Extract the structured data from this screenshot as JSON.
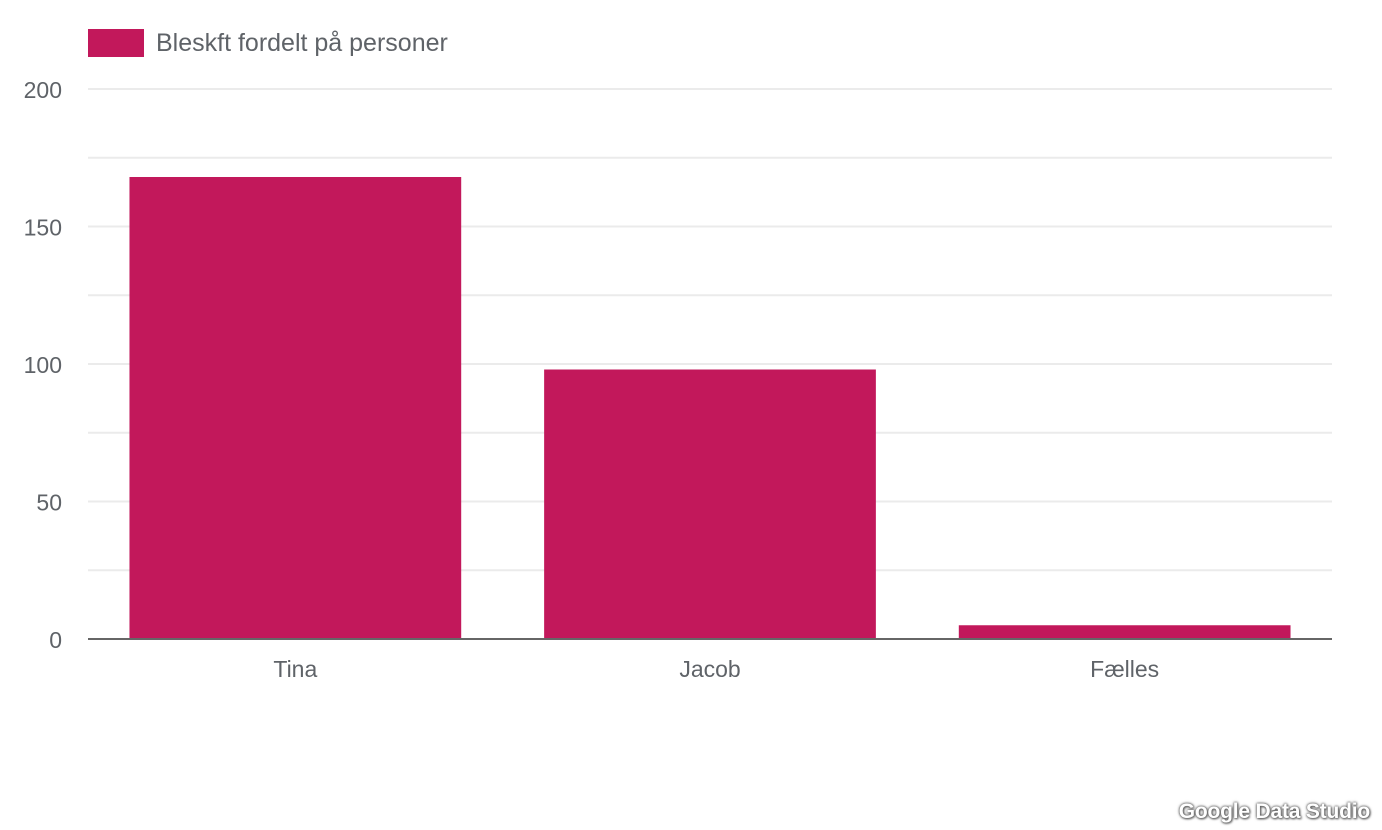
{
  "colors": {
    "bar": "#c2185b",
    "grid": "#ebebeb",
    "axis": "#666666",
    "text": "#5f6368"
  },
  "chart_data": {
    "type": "bar",
    "legend": {
      "label": "Bleskft fordelt på personer",
      "position": "top-left"
    },
    "categories": [
      "Tina",
      "Jacob",
      "Fælles"
    ],
    "series": [
      {
        "name": "Bleskft fordelt på personer",
        "values": [
          168,
          98,
          5
        ]
      }
    ],
    "yticks": [
      0,
      50,
      100,
      150,
      200
    ],
    "ylim": [
      0,
      200
    ],
    "grid": true
  },
  "watermark": "Google Data Studio"
}
